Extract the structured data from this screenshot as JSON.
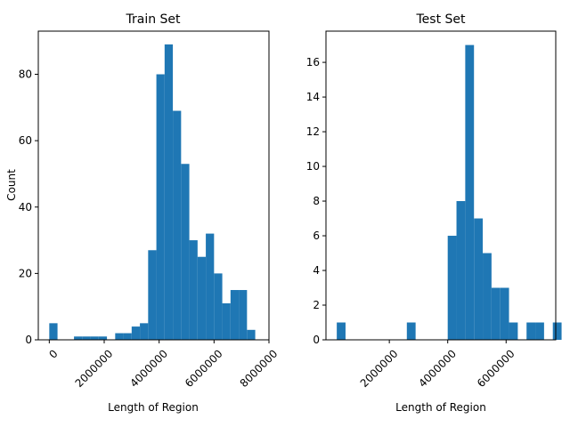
{
  "colors": {
    "bar": "#1f77b4",
    "axis": "#000000",
    "background": "#ffffff"
  },
  "chart_data": [
    {
      "type": "bar",
      "title": "Train Set",
      "xlabel": "Length of Region",
      "ylabel": "Count",
      "xlim": [
        -400000,
        8000000
      ],
      "ylim": [
        0,
        93
      ],
      "x_ticks": [
        0,
        2000000,
        4000000,
        6000000,
        8000000
      ],
      "x_tick_labels": [
        "0",
        "2000000",
        "4000000",
        "6000000",
        "8000000"
      ],
      "y_ticks": [
        0,
        20,
        40,
        60,
        80
      ],
      "y_tick_labels": [
        "0",
        "20",
        "40",
        "60",
        "80"
      ],
      "grid": false,
      "bins": [
        {
          "x0": 0,
          "x1": 300000,
          "count": 5
        },
        {
          "x0": 300000,
          "x1": 600000,
          "count": 0
        },
        {
          "x0": 600000,
          "x1": 900000,
          "count": 0
        },
        {
          "x0": 900000,
          "x1": 1200000,
          "count": 1
        },
        {
          "x0": 1200000,
          "x1": 1500000,
          "count": 1
        },
        {
          "x0": 1500000,
          "x1": 1800000,
          "count": 1
        },
        {
          "x0": 1800000,
          "x1": 2100000,
          "count": 1
        },
        {
          "x0": 2100000,
          "x1": 2400000,
          "count": 0
        },
        {
          "x0": 2400000,
          "x1": 2700000,
          "count": 2
        },
        {
          "x0": 2700000,
          "x1": 3000000,
          "count": 2
        },
        {
          "x0": 3000000,
          "x1": 3300000,
          "count": 4
        },
        {
          "x0": 3300000,
          "x1": 3600000,
          "count": 5
        },
        {
          "x0": 3600000,
          "x1": 3900000,
          "count": 27
        },
        {
          "x0": 3900000,
          "x1": 4200000,
          "count": 80
        },
        {
          "x0": 4200000,
          "x1": 4500000,
          "count": 89
        },
        {
          "x0": 4500000,
          "x1": 4800000,
          "count": 69
        },
        {
          "x0": 4800000,
          "x1": 5100000,
          "count": 53
        },
        {
          "x0": 5100000,
          "x1": 5400000,
          "count": 30
        },
        {
          "x0": 5400000,
          "x1": 5700000,
          "count": 25
        },
        {
          "x0": 5700000,
          "x1": 6000000,
          "count": 32
        },
        {
          "x0": 6000000,
          "x1": 6300000,
          "count": 20
        },
        {
          "x0": 6300000,
          "x1": 6600000,
          "count": 11
        },
        {
          "x0": 6600000,
          "x1": 6900000,
          "count": 15
        },
        {
          "x0": 6900000,
          "x1": 7200000,
          "count": 15
        },
        {
          "x0": 7200000,
          "x1": 7500000,
          "count": 3
        }
      ]
    },
    {
      "type": "bar",
      "title": "Test Set",
      "xlabel": "Length of Region",
      "ylabel": "",
      "xlim": [
        -170000,
        7700000
      ],
      "ylim": [
        0,
        17.8
      ],
      "x_ticks": [
        2000000,
        4000000,
        6000000
      ],
      "x_tick_labels": [
        "2000000",
        "4000000",
        "6000000"
      ],
      "y_ticks": [
        0,
        2,
        4,
        6,
        8,
        10,
        12,
        14,
        16
      ],
      "y_tick_labels": [
        "0",
        "2",
        "4",
        "6",
        "8",
        "10",
        "12",
        "14",
        "16"
      ],
      "grid": false,
      "bins": [
        {
          "x0": 200000,
          "x1": 500000,
          "count": 1
        },
        {
          "x0": 500000,
          "x1": 2600000,
          "count": 0
        },
        {
          "x0": 2600000,
          "x1": 2900000,
          "count": 1
        },
        {
          "x0": 2900000,
          "x1": 4000000,
          "count": 0
        },
        {
          "x0": 4000000,
          "x1": 4300000,
          "count": 6
        },
        {
          "x0": 4300000,
          "x1": 4600000,
          "count": 8
        },
        {
          "x0": 4600000,
          "x1": 4900000,
          "count": 17
        },
        {
          "x0": 4900000,
          "x1": 5200000,
          "count": 7
        },
        {
          "x0": 5200000,
          "x1": 5500000,
          "count": 5
        },
        {
          "x0": 5500000,
          "x1": 5800000,
          "count": 3
        },
        {
          "x0": 5800000,
          "x1": 6100000,
          "count": 3
        },
        {
          "x0": 6100000,
          "x1": 6400000,
          "count": 1
        },
        {
          "x0": 6400000,
          "x1": 6700000,
          "count": 0
        },
        {
          "x0": 6700000,
          "x1": 7000000,
          "count": 1
        },
        {
          "x0": 7000000,
          "x1": 7300000,
          "count": 1
        },
        {
          "x0": 7300000,
          "x1": 7600000,
          "count": 0
        },
        {
          "x0": 7600000,
          "x1": 7900000,
          "count": 1
        }
      ]
    }
  ]
}
